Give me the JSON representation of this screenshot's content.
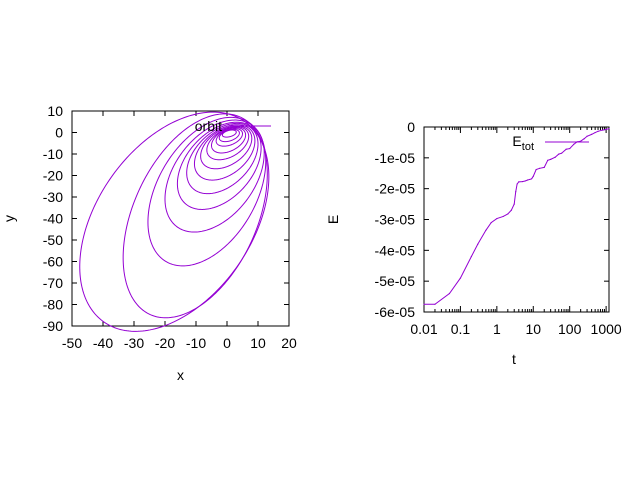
{
  "chart_data": [
    {
      "type": "line",
      "xlabel": "x",
      "ylabel": "y",
      "xlim": [
        -50,
        20
      ],
      "ylim": [
        -90,
        10
      ],
      "xticks": [
        "-50",
        "-40",
        "-30",
        "-20",
        "-10",
        "0",
        "10",
        "20"
      ],
      "yticks": [
        "10",
        "0",
        "-10",
        "-20",
        "-30",
        "-40",
        "-50",
        "-60",
        "-70",
        "-80",
        "-90"
      ],
      "legend_position": "top-right",
      "series": [
        {
          "name": "orbit",
          "color": "#9400d3",
          "orbits": [
            {
              "x_range": [
                -47.5,
                13.5
              ],
              "y_range": [
                -88,
                5
              ]
            },
            {
              "x_range": [
                -33.5,
                13
              ],
              "y_range": [
                -82,
                4.5
              ]
            },
            {
              "x_range": [
                -25.5,
                12.5
              ],
              "y_range": [
                -59,
                4
              ]
            },
            {
              "x_range": [
                -20,
                12
              ],
              "y_range": [
                -44,
                3.5
              ]
            },
            {
              "x_range": [
                -16,
                11
              ],
              "y_range": [
                -34,
                3
              ]
            },
            {
              "x_range": [
                -13,
                10
              ],
              "y_range": [
                -27,
                2.8
              ]
            },
            {
              "x_range": [
                -10.5,
                9
              ],
              "y_range": [
                -21,
                2.5
              ]
            },
            {
              "x_range": [
                -8.5,
                8
              ],
              "y_range": [
                -16,
                2.2
              ]
            },
            {
              "x_range": [
                -6.5,
                7
              ],
              "y_range": [
                -12,
                2
              ]
            },
            {
              "x_range": [
                -5,
                6
              ],
              "y_range": [
                -9,
                1.8
              ]
            },
            {
              "x_range": [
                -3.5,
                5
              ],
              "y_range": [
                -6,
                1.5
              ]
            },
            {
              "x_range": [
                -2.5,
                4
              ],
              "y_range": [
                -4,
                1.2
              ]
            },
            {
              "x_range": [
                -1.5,
                3
              ],
              "y_range": [
                -2,
                1
              ]
            }
          ]
        }
      ]
    },
    {
      "type": "line",
      "xlabel": "t",
      "ylabel": "E",
      "xscale": "log",
      "xlim": [
        0.01,
        1200
      ],
      "ylim": [
        -6e-05,
        0
      ],
      "xticks": [
        "0.01",
        "0.1",
        "1",
        "10",
        "100",
        "1000"
      ],
      "yticks": [
        "0",
        "-1e-05",
        "-2e-05",
        "-3e-05",
        "-4e-05",
        "-5e-05",
        "-6e-05"
      ],
      "legend_position": "top-right",
      "series": [
        {
          "name": "Etot",
          "legend_label": {
            "main": "E",
            "sub": "tot"
          },
          "color": "#9400d3",
          "x": [
            0.01,
            0.02,
            0.05,
            0.1,
            0.2,
            0.3,
            0.5,
            0.7,
            1,
            1.5,
            2,
            2.5,
            3,
            3.3,
            3.6,
            4,
            5,
            6,
            7,
            8,
            9,
            10,
            12,
            15,
            20,
            25,
            30,
            40,
            50,
            60,
            80,
            100,
            130,
            160,
            200,
            250,
            300,
            400,
            500,
            600,
            800,
            1000,
            1200
          ],
          "y": [
            -5.75e-05,
            -5.75e-05,
            -5.4e-05,
            -4.9e-05,
            -4.2e-05,
            -3.8e-05,
            -3.35e-05,
            -3.1e-05,
            -2.97e-05,
            -2.9e-05,
            -2.82e-05,
            -2.7e-05,
            -2.5e-05,
            -2.1e-05,
            -1.85e-05,
            -1.78e-05,
            -1.77e-05,
            -1.75e-05,
            -1.72e-05,
            -1.7e-05,
            -1.68e-05,
            -1.6e-05,
            -1.38e-05,
            -1.34e-05,
            -1.31e-05,
            -1.08e-05,
            -1.05e-05,
            -9.8e-06,
            -8.8e-06,
            -8.5e-06,
            -7.2e-06,
            -7e-06,
            -5.6e-06,
            -4.8e-06,
            -4.6e-06,
            -3.8e-06,
            -3e-06,
            -2.4e-06,
            -1.8e-06,
            -1.4e-06,
            -1e-06,
            -8e-07,
            -5e-07
          ]
        }
      ]
    }
  ]
}
